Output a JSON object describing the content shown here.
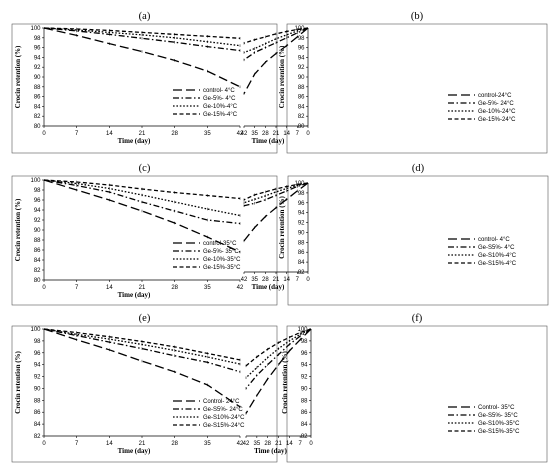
{
  "chart_data": [
    {
      "type": "line",
      "panel_label": "(a)",
      "xlabel": "Time (day)",
      "ylabel": "Crocin retention (%)",
      "x": [
        0,
        7,
        14,
        21,
        28,
        35,
        42
      ],
      "xlim": [
        0,
        42
      ],
      "ylim": [
        80,
        100
      ],
      "yticks": [
        80,
        82,
        84,
        86,
        88,
        90,
        92,
        94,
        96,
        98,
        100
      ],
      "legend_position": "bottom-right",
      "series": [
        {
          "name": "control- 4°C",
          "values": [
            100,
            98.5,
            96.8,
            95.2,
            93.4,
            91.2,
            88.0
          ],
          "style": "long-dash"
        },
        {
          "name": "Ge-5%- 4°C",
          "values": [
            100,
            99.4,
            98.7,
            97.9,
            97.1,
            96.2,
            95.4
          ],
          "style": "dash-dot"
        },
        {
          "name": "Ge-10%-4°C",
          "values": [
            100,
            99.6,
            99.1,
            98.6,
            98.0,
            97.2,
            96.4
          ],
          "style": "dotted"
        },
        {
          "name": "Ge-15%-4°C",
          "values": [
            100,
            99.8,
            99.5,
            99.1,
            98.7,
            98.3,
            97.9
          ],
          "style": "short-dash"
        }
      ]
    },
    {
      "type": "line",
      "panel_label": "(b)",
      "xlabel": "Time (day)",
      "ylabel": "Crocin retention (%)",
      "x": [
        0,
        7,
        14,
        21,
        28,
        35,
        42
      ],
      "xlim": [
        0,
        42
      ],
      "ylim": [
        80,
        100
      ],
      "yticks": [
        80,
        82,
        84,
        86,
        88,
        90,
        92,
        94,
        96,
        98,
        100
      ],
      "legend_position": "bottom-right",
      "series": [
        {
          "name": "control-24°C",
          "values": [
            100,
            98.2,
            96.4,
            94.8,
            93.0,
            90.6,
            86.6
          ],
          "style": "long-dash"
        },
        {
          "name": "Ge-5%- 24°C",
          "values": [
            100,
            99.0,
            98.0,
            97.0,
            96.0,
            95.0,
            93.5
          ],
          "style": "dash-dot"
        },
        {
          "name": "Ge-10%-24°C",
          "values": [
            100,
            99.4,
            98.6,
            97.8,
            96.8,
            95.8,
            95.0
          ],
          "style": "dotted"
        },
        {
          "name": "Ge-15%-24°C",
          "values": [
            100,
            99.7,
            99.3,
            98.8,
            98.2,
            97.6,
            96.9
          ],
          "style": "short-dash"
        }
      ]
    },
    {
      "type": "line",
      "panel_label": "(c)",
      "xlabel": "Time (day)",
      "ylabel": "Crocin retention (%)",
      "x": [
        0,
        7,
        14,
        21,
        28,
        35,
        42
      ],
      "xlim": [
        0,
        42
      ],
      "ylim": [
        80,
        100
      ],
      "yticks": [
        80,
        82,
        84,
        86,
        88,
        90,
        92,
        94,
        96,
        98,
        100
      ],
      "legend_position": "bottom-right",
      "series": [
        {
          "name": "control-35°C",
          "values": [
            100,
            98.0,
            96.0,
            93.8,
            91.4,
            88.6,
            85.6
          ],
          "style": "long-dash"
        },
        {
          "name": "Ge-5%- 35°C",
          "values": [
            100,
            98.9,
            97.6,
            95.6,
            93.8,
            92.0,
            91.3
          ],
          "style": "dash-dot"
        },
        {
          "name": "Ge-10%-35°C",
          "values": [
            100,
            99.3,
            98.3,
            97.0,
            95.6,
            94.2,
            92.9
          ],
          "style": "dotted"
        },
        {
          "name": "Ge-15%-35°C",
          "values": [
            100,
            99.6,
            99.0,
            98.2,
            97.5,
            96.9,
            96.3
          ],
          "style": "short-dash"
        }
      ]
    },
    {
      "type": "line",
      "panel_label": "(d)",
      "xlabel": "Time (day)",
      "ylabel": "Crocin retention (%)",
      "x": [
        0,
        7,
        14,
        21,
        28,
        35,
        42
      ],
      "xlim": [
        0,
        42
      ],
      "ylim": [
        82,
        100
      ],
      "yticks": [
        82,
        84,
        86,
        88,
        90,
        92,
        94,
        96,
        98,
        100
      ],
      "legend_position": "bottom-right",
      "series": [
        {
          "name": "control- 4°C",
          "values": [
            100,
            98.4,
            96.7,
            95.0,
            93.2,
            91.0,
            88.3
          ],
          "style": "long-dash"
        },
        {
          "name": "Ge-S5%- 4°C",
          "values": [
            100,
            99.3,
            98.4,
            97.5,
            96.6,
            95.9,
            95.4
          ],
          "style": "dash-dot"
        },
        {
          "name": "Ge-S10%-4°C",
          "values": [
            100,
            99.5,
            98.9,
            98.2,
            97.4,
            96.7,
            96.0
          ],
          "style": "dotted"
        },
        {
          "name": "Ge-S15%-4°C",
          "values": [
            100,
            99.7,
            99.3,
            98.8,
            98.2,
            97.6,
            96.6
          ],
          "style": "short-dash"
        }
      ]
    },
    {
      "type": "line",
      "panel_label": "(e)",
      "xlabel": "Time (day)",
      "ylabel": "Crocin retention (%)",
      "x": [
        0,
        7,
        14,
        21,
        28,
        35,
        42
      ],
      "xlim": [
        0,
        42
      ],
      "ylim": [
        82,
        100
      ],
      "yticks": [
        82,
        84,
        86,
        88,
        90,
        92,
        94,
        96,
        98,
        100
      ],
      "legend_position": "bottom-right",
      "series": [
        {
          "name": "Control- 24°C",
          "values": [
            100,
            98.2,
            96.5,
            94.6,
            92.8,
            90.6,
            86.9
          ],
          "style": "long-dash"
        },
        {
          "name": "Ge-S5%- 24°C",
          "values": [
            100,
            98.9,
            97.8,
            96.7,
            95.5,
            94.4,
            92.8
          ],
          "style": "dash-dot"
        },
        {
          "name": "Ge-S10%-24°C",
          "values": [
            100,
            99.1,
            98.3,
            97.4,
            96.4,
            95.3,
            94.1
          ],
          "style": "dotted"
        },
        {
          "name": "Ge-S15%-24°C",
          "values": [
            100,
            99.4,
            98.7,
            97.9,
            97.0,
            95.9,
            94.8
          ],
          "style": "short-dash"
        }
      ]
    },
    {
      "type": "line",
      "panel_label": "(f)",
      "xlabel": "Time (day)",
      "ylabel": "Crocin retention (%)",
      "x": [
        0,
        7,
        14,
        21,
        28,
        35,
        42
      ],
      "xlim": [
        0,
        42
      ],
      "ylim": [
        82,
        100
      ],
      "yticks": [
        82,
        84,
        86,
        88,
        90,
        92,
        94,
        96,
        98,
        100
      ],
      "legend_position": "bottom-right",
      "series": [
        {
          "name": "Control- 35°C",
          "values": [
            100,
            98.2,
            96.3,
            94.0,
            91.6,
            88.8,
            85.8
          ],
          "style": "long-dash"
        },
        {
          "name": "Ge-S5%- 35°C",
          "values": [
            100,
            98.8,
            97.4,
            95.7,
            94.0,
            92.2,
            90.0
          ],
          "style": "dash-dot"
        },
        {
          "name": "Ge-S10%-35°C",
          "values": [
            100,
            99.1,
            98.0,
            96.7,
            95.2,
            93.5,
            91.8
          ],
          "style": "dotted"
        },
        {
          "name": "Ge-S15%-35°C",
          "values": [
            100,
            99.4,
            98.6,
            97.7,
            96.6,
            95.3,
            93.8
          ],
          "style": "short-dash"
        }
      ]
    }
  ]
}
